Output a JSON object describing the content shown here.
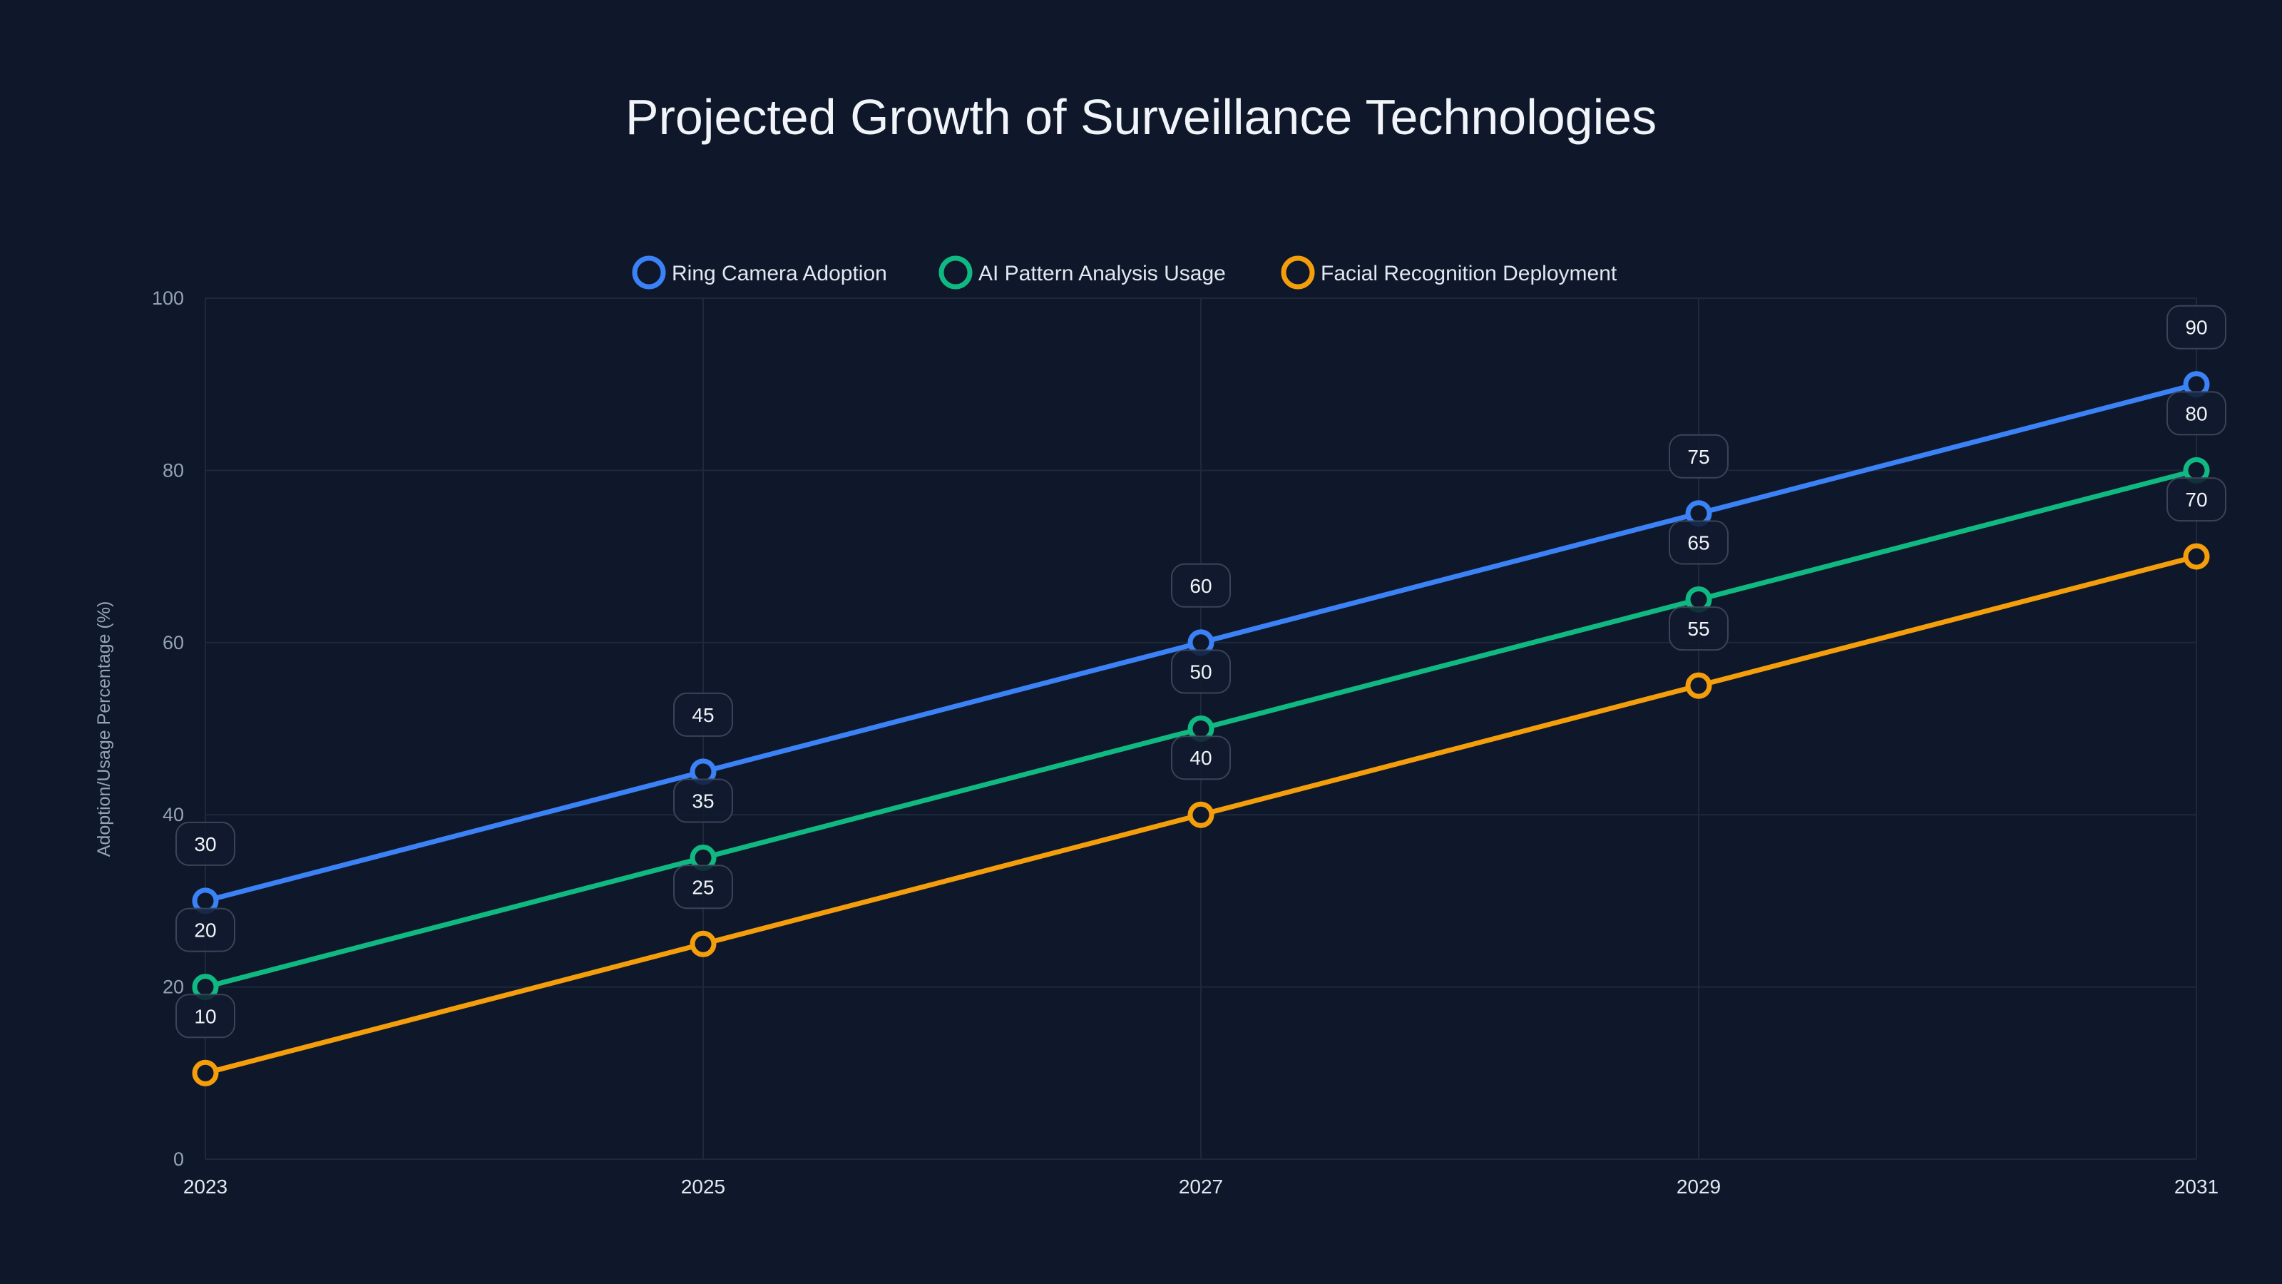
{
  "chart_data": {
    "type": "line",
    "title": "Projected Growth of Surveillance Technologies",
    "xlabel": "",
    "ylabel": "Adoption/Usage Percentage (%)",
    "x": [
      "2023",
      "2025",
      "2027",
      "2029",
      "2031"
    ],
    "ylim": [
      0,
      100
    ],
    "yticks": [
      "0",
      "20",
      "40",
      "60",
      "80",
      "100"
    ],
    "grid": true,
    "legend_position": "top-center",
    "series": [
      {
        "name": "Ring Camera Adoption",
        "color": "#3b82f6",
        "values": [
          30,
          45,
          60,
          75,
          90
        ]
      },
      {
        "name": "AI Pattern Analysis Usage",
        "color": "#10b981",
        "values": [
          20,
          35,
          50,
          65,
          80
        ]
      },
      {
        "name": "Facial Recognition Deployment",
        "color": "#f59e0b",
        "values": [
          10,
          25,
          40,
          55,
          70
        ]
      }
    ]
  }
}
